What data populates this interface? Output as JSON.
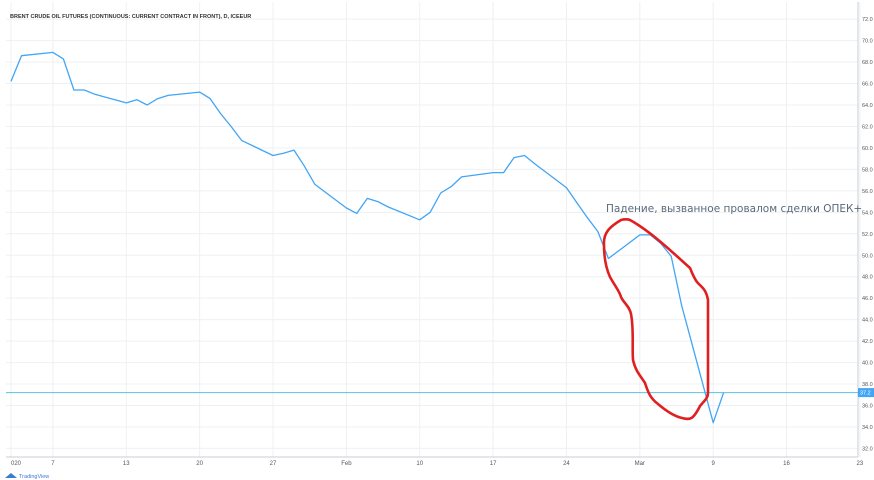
{
  "chart_data": {
    "type": "line",
    "title": "BRENT CRUDE OIL FUTURES (CONTINUOUS: CURRENT CONTRACT IN FRONT), D, ICEEUR",
    "x_tick_labels": [
      "020",
      "7",
      "13",
      "20",
      "27",
      "Feb",
      "10",
      "17",
      "24",
      "Mar",
      "9",
      "16",
      "23"
    ],
    "y_ticks": [
      32,
      34,
      36,
      38,
      40,
      42,
      44,
      46,
      48,
      50,
      52,
      54,
      56,
      58,
      60,
      62,
      64,
      66,
      68,
      70,
      72
    ],
    "y_tick_labels": [
      "32.0",
      "34.0",
      "36.0",
      "38.0",
      "40.0",
      "42.0",
      "44.0",
      "46.0",
      "48.0",
      "50.0",
      "52.0",
      "54.0",
      "56.0",
      "58.0",
      "60.0",
      "62.0",
      "64.0",
      "66.0",
      "68.0",
      "70.0",
      "72.0"
    ],
    "ylim": [
      31.2,
      73.6
    ],
    "grid": true,
    "series": [
      {
        "color": "#42a5f5",
        "x": [
          "2020-01-02",
          "2020-01-03",
          "2020-01-06",
          "2020-01-07",
          "2020-01-08",
          "2020-01-09",
          "2020-01-10",
          "2020-01-13",
          "2020-01-14",
          "2020-01-15",
          "2020-01-16",
          "2020-01-17",
          "2020-01-20",
          "2020-01-21",
          "2020-01-22",
          "2020-01-23",
          "2020-01-24",
          "2020-01-27",
          "2020-01-28",
          "2020-01-29",
          "2020-01-30",
          "2020-01-31",
          "2020-02-03",
          "2020-02-04",
          "2020-02-05",
          "2020-02-06",
          "2020-02-07",
          "2020-02-10",
          "2020-02-11",
          "2020-02-12",
          "2020-02-13",
          "2020-02-14",
          "2020-02-17",
          "2020-02-18",
          "2020-02-19",
          "2020-02-20",
          "2020-02-21",
          "2020-02-24",
          "2020-02-25",
          "2020-02-26",
          "2020-02-27",
          "2020-02-28",
          "2020-03-02",
          "2020-03-03",
          "2020-03-04",
          "2020-03-05",
          "2020-03-06",
          "2020-03-09",
          "2020-03-10"
        ],
        "y": [
          66.2,
          68.6,
          68.9,
          68.3,
          65.4,
          65.4,
          65.0,
          64.2,
          64.5,
          64.0,
          64.6,
          64.9,
          65.2,
          64.6,
          63.2,
          62.0,
          60.7,
          59.3,
          59.5,
          59.8,
          58.3,
          56.6,
          54.4,
          53.9,
          55.3,
          55.0,
          54.5,
          53.3,
          54.0,
          55.8,
          56.4,
          57.3,
          57.7,
          57.7,
          59.1,
          59.3,
          58.5,
          56.3,
          54.9,
          53.5,
          52.2,
          49.7,
          51.9,
          51.9,
          51.1,
          49.9,
          45.3,
          34.4,
          37.2
        ]
      }
    ],
    "current_price_label": "37.2",
    "current_price": 37.2,
    "annotation": "Падение, вызванное провалом сделки ОПЕК+",
    "annotation_color": "#e02020"
  },
  "footer": {
    "brand": "TradingView"
  }
}
